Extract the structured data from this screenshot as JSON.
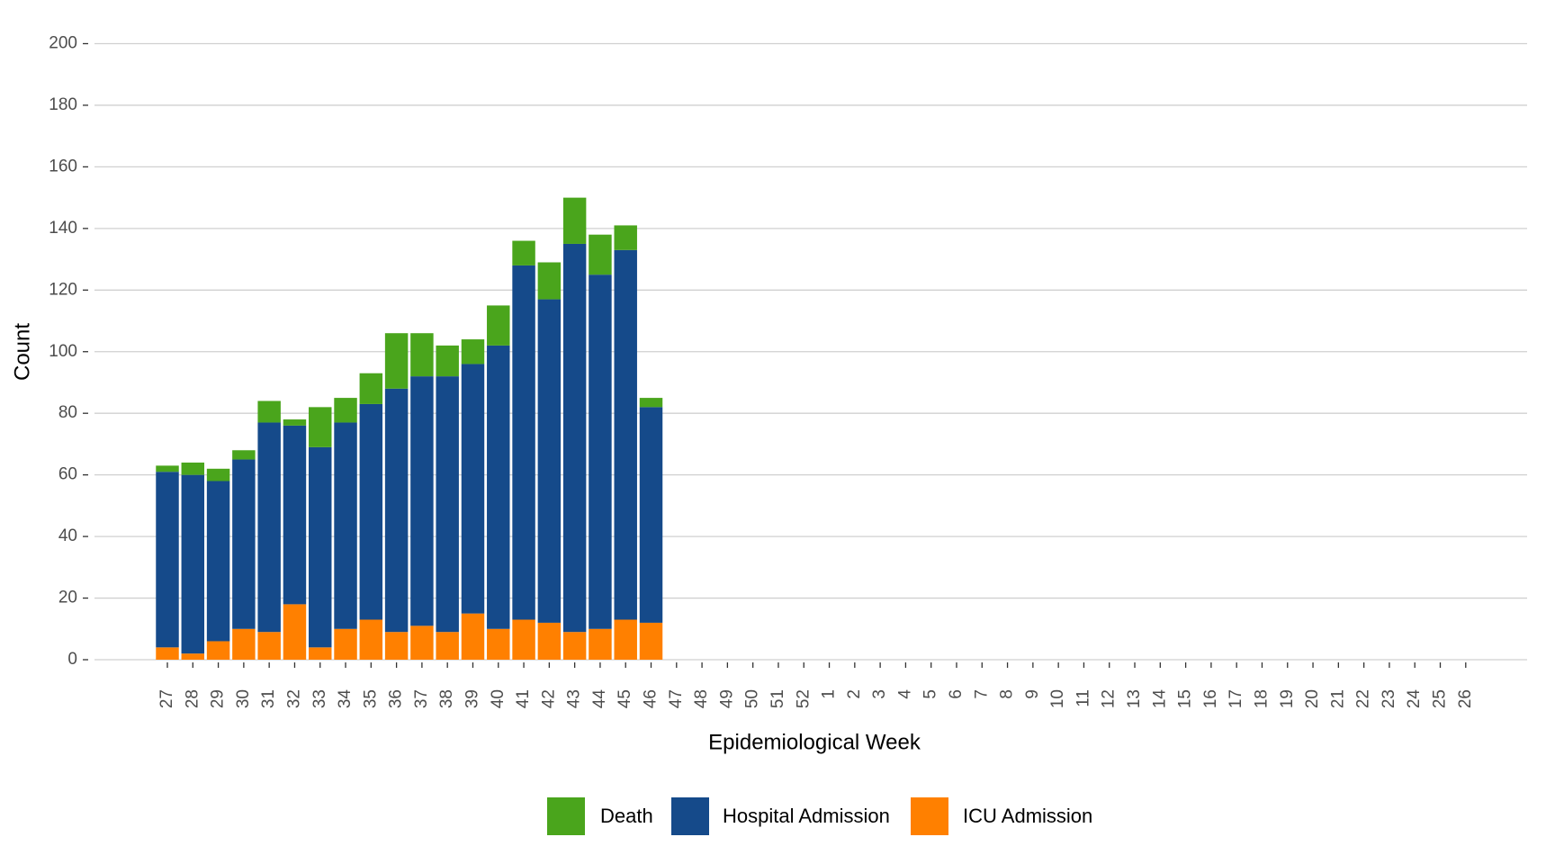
{
  "chart_data": {
    "type": "bar",
    "stacked": true,
    "x_label": "Epidemiological Week",
    "y_label": "Count",
    "categories": [
      "27",
      "28",
      "29",
      "30",
      "31",
      "32",
      "33",
      "34",
      "35",
      "36",
      "37",
      "38",
      "39",
      "40",
      "41",
      "42",
      "43",
      "44",
      "45",
      "46",
      "47",
      "48",
      "49",
      "50",
      "51",
      "52",
      "1",
      "2",
      "3",
      "4",
      "5",
      "6",
      "7",
      "8",
      "9",
      "10",
      "11",
      "12",
      "13",
      "14",
      "15",
      "16",
      "17",
      "18",
      "19",
      "20",
      "21",
      "22",
      "23",
      "24",
      "25",
      "26"
    ],
    "series": [
      {
        "name": "ICU Admission",
        "color": "#ff8000",
        "values": [
          4,
          2,
          6,
          10,
          9,
          18,
          4,
          10,
          13,
          9,
          11,
          9,
          15,
          10,
          13,
          12,
          9,
          10,
          13,
          12,
          null,
          null,
          null,
          null,
          null,
          null,
          null,
          null,
          null,
          null,
          null,
          null,
          null,
          null,
          null,
          null,
          null,
          null,
          null,
          null,
          null,
          null,
          null,
          null,
          null,
          null,
          null,
          null,
          null,
          null,
          null,
          null
        ]
      },
      {
        "name": "Hospital Admission",
        "color": "#154a8a",
        "values": [
          57,
          58,
          52,
          55,
          68,
          58,
          65,
          67,
          70,
          79,
          81,
          83,
          81,
          92,
          115,
          105,
          126,
          115,
          120,
          70,
          null,
          null,
          null,
          null,
          null,
          null,
          null,
          null,
          null,
          null,
          null,
          null,
          null,
          null,
          null,
          null,
          null,
          null,
          null,
          null,
          null,
          null,
          null,
          null,
          null,
          null,
          null,
          null,
          null,
          null,
          null,
          null
        ]
      },
      {
        "name": "Death",
        "color": "#4aa51c",
        "values": [
          2,
          4,
          4,
          3,
          7,
          2,
          13,
          8,
          10,
          18,
          14,
          10,
          8,
          13,
          8,
          12,
          15,
          13,
          8,
          3,
          null,
          null,
          null,
          null,
          null,
          null,
          null,
          null,
          null,
          null,
          null,
          null,
          null,
          null,
          null,
          null,
          null,
          null,
          null,
          null,
          null,
          null,
          null,
          null,
          null,
          null,
          null,
          null,
          null,
          null,
          null,
          null
        ]
      }
    ],
    "ylim": [
      0,
      200
    ],
    "yticks": [
      0,
      20,
      40,
      60,
      80,
      100,
      120,
      140,
      160,
      180,
      200
    ],
    "grid": true,
    "legend": "bottom"
  }
}
